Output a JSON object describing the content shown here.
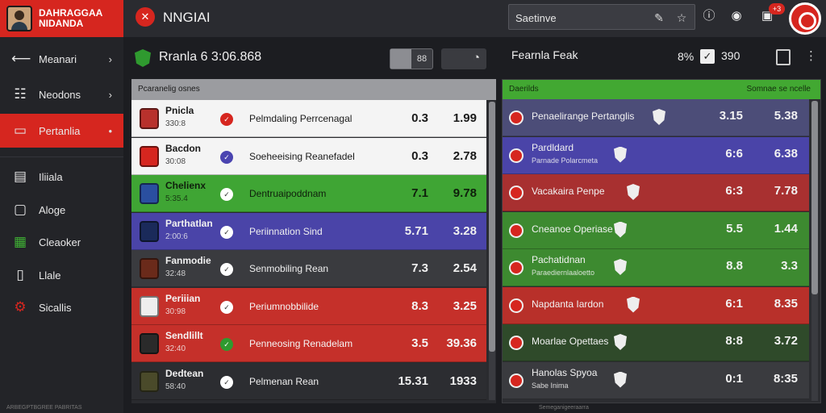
{
  "brand": {
    "line1": "DAHRAGGAA",
    "line2": "NIDANDA"
  },
  "app": {
    "title": "NNGIAI"
  },
  "search": {
    "value": "Saetinve"
  },
  "notifications": {
    "badge": "+3"
  },
  "sidebar": {
    "items": [
      {
        "label": "Meanari",
        "icon": "back-arrow-icon",
        "chevron": true,
        "active": false
      },
      {
        "label": "Neodons",
        "icon": "grid-icon",
        "chevron": true,
        "active": false
      },
      {
        "label": "Pertanlia",
        "icon": "chat-icon",
        "chevron": true,
        "active": true
      },
      {
        "label": "Iliiala",
        "icon": "layers-icon",
        "chevron": false,
        "active": false
      },
      {
        "label": "Aloge",
        "icon": "monitor-icon",
        "chevron": false,
        "active": false
      },
      {
        "label": "Cleaoker",
        "icon": "chart-icon",
        "chevron": false,
        "active": false
      },
      {
        "label": "Llale",
        "icon": "phone-icon",
        "chevron": false,
        "active": false
      },
      {
        "label": "Sicallis",
        "icon": "settings-icon",
        "chevron": false,
        "active": false
      }
    ]
  },
  "left_panel": {
    "title": "Rranla 6 3:06.868",
    "toggle": [
      "",
      "88"
    ],
    "column_header": "Pcaranelig osnes",
    "rows": [
      {
        "name": "Pnicla",
        "sub": "330:8",
        "desc": "Pelmdaling Perrcenagal",
        "v1": "0.3",
        "v2": "1.99",
        "bg": "#f4f4f4",
        "fg": "#1a1a1a",
        "logo": "#b8312c",
        "dot": "#d6261f"
      },
      {
        "name": "Bacdon",
        "sub": "30:08",
        "desc": "Soeheeising Reanefadel",
        "v1": "0.3",
        "v2": "2.78",
        "bg": "#f4f4f4",
        "fg": "#1a1a1a",
        "logo": "#d6261f",
        "dot": "#4a44b0"
      },
      {
        "name": "Chelienx",
        "sub": "5:35.4",
        "desc": "Dentruaipoddnam",
        "v1": "7.1",
        "v2": "9.78",
        "bg": "#3fa534",
        "fg": "#0f1f0c",
        "logo": "#2a4fa0",
        "dot": "#fff"
      },
      {
        "name": "Parthatlan",
        "sub": "2:00:6",
        "desc": "Periinnation Sind",
        "v1": "5.71",
        "v2": "3.28",
        "bg": "#4a44a8",
        "fg": "#f0f0f0",
        "logo": "#1a2a5a",
        "dot": "#fff"
      },
      {
        "name": "Fanmodie",
        "sub": "32:48",
        "desc": "Senmobiling Rean",
        "v1": "7.3",
        "v2": "2.54",
        "bg": "#3a3b3f",
        "fg": "#f0f0f0",
        "logo": "#6a2a1a",
        "dot": "#fff"
      },
      {
        "name": "Periiian",
        "sub": "30:98",
        "desc": "Periumnobbilide",
        "v1": "8.3",
        "v2": "3.25",
        "bg": "#c5302a",
        "fg": "#f5f5f5",
        "logo": "#eee",
        "dot": "#fff"
      },
      {
        "name": "Sendlillt",
        "sub": "32:40",
        "desc": "Penneosing Renadelam",
        "v1": "3.5",
        "v2": "39.36",
        "bg": "#c5302a",
        "fg": "#f5f5f5",
        "logo": "#2a2a2a",
        "dot": "#2f9a2f"
      },
      {
        "name": "Dedtean",
        "sub": "58:40",
        "desc": "Pelmenan Rean",
        "v1": "15.31",
        "v2": "1933",
        "bg": "#2c2d31",
        "fg": "#f0f0f0",
        "logo": "#4a4a2a",
        "dot": "#fff"
      }
    ]
  },
  "right_panel": {
    "title": "Fearnla Feak",
    "pct": "8%",
    "num": "390",
    "header_left": "Daerilds",
    "header_right": "Somnae se ncelle",
    "rows": [
      {
        "name": "Penaelirange Pertanglis",
        "sub": "",
        "v1": "3.15",
        "v2": "5.38",
        "bg": "#4c4d78",
        "shield_x": 186
      },
      {
        "name": "Pardldard",
        "sub": "Parnade Polarcmeta",
        "v1": "6:6",
        "v2": "6.38",
        "bg": "#4a44a8",
        "shield_x": 138
      },
      {
        "name": "Vacakaira Penpe",
        "sub": "",
        "v1": "6:3",
        "v2": "7.78",
        "bg": "#a83030",
        "shield_x": 154
      },
      {
        "name": "Cneanoe Operiase",
        "sub": "",
        "v1": "5.5",
        "v2": "1.44",
        "bg": "#3d8a30",
        "shield_x": 138
      },
      {
        "name": "Pachatidnan",
        "sub": "Paraediernlaaloetto",
        "v1": "8.8",
        "v2": "3.3",
        "bg": "#3d8a30",
        "shield_x": 138
      },
      {
        "name": "Napdanta Iardon",
        "sub": "",
        "v1": "6:1",
        "v2": "8.35",
        "bg": "#b8302a",
        "shield_x": 154
      },
      {
        "name": "Moarlae Opettaes",
        "sub": "",
        "v1": "8:8",
        "v2": "3.72",
        "bg": "#2f4a2a",
        "shield_x": 138
      },
      {
        "name": "Hanolas Spyoa",
        "sub": "Sabe Inima",
        "v1": "0:1",
        "v2": "8:35",
        "bg": "#3a3b3f",
        "shield_x": 138
      }
    ]
  },
  "footer": {
    "left": "ARBEGPTBGREE PABRITAS",
    "right": "Semeganigeeraarra"
  }
}
